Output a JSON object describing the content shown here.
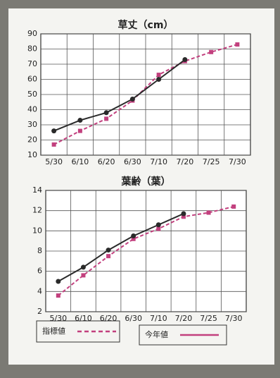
{
  "chart_data": [
    {
      "type": "line",
      "title": "草丈（cm）",
      "categories": [
        "5/30",
        "6/10",
        "6/20",
        "6/30",
        "7/10",
        "7/20",
        "7/25",
        "7/30"
      ],
      "series": [
        {
          "name": "指標値",
          "color": "#c2407e",
          "dash": true,
          "marker": "square",
          "values": [
            17,
            26,
            34,
            46,
            63,
            72,
            78,
            83
          ]
        },
        {
          "name": "今年値",
          "color": "#2a2a2a",
          "dash": false,
          "marker": "circle",
          "values": [
            26,
            33,
            38,
            47,
            60,
            73,
            null,
            null
          ]
        }
      ],
      "ylim": [
        10,
        90
      ],
      "yticks": [
        10,
        20,
        30,
        40,
        50,
        60,
        70,
        80,
        90
      ],
      "grid": true
    },
    {
      "type": "line",
      "title": "葉齢（葉）",
      "categories": [
        "5/30",
        "6/10",
        "6/20",
        "6/30",
        "7/10",
        "7/20",
        "7/25",
        "7/30"
      ],
      "series": [
        {
          "name": "指標値",
          "color": "#c2407e",
          "dash": true,
          "marker": "square",
          "values": [
            3.6,
            5.6,
            7.5,
            9.2,
            10.2,
            11.4,
            11.8,
            12.4
          ]
        },
        {
          "name": "今年値",
          "color": "#2a2a2a",
          "dash": false,
          "marker": "circle",
          "values": [
            5.0,
            6.4,
            8.1,
            9.5,
            10.6,
            11.7,
            null,
            null
          ]
        }
      ],
      "ylim": [
        2,
        14
      ],
      "yticks": [
        2,
        4,
        6,
        8,
        10,
        12,
        14
      ],
      "grid": true
    }
  ]
}
